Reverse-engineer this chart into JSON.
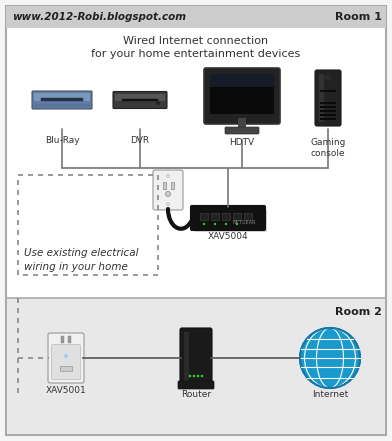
{
  "title_url": "www.2012-Robi.blogspot.com",
  "title_main1": "Wired Internet connection",
  "title_main2": "for your home entertainment devices",
  "room1_label": "Room 1",
  "room2_label": "Room 2",
  "xav5004_label": "XAV5004",
  "xav5001_label": "XAV5001",
  "router_label": "Router",
  "internet_label": "Internet",
  "bluray_label": "Blu-Ray",
  "dvr_label": "DVR",
  "hdtv_label": "HDTV",
  "console_label": "Gaming\nconsole",
  "use_text": "Use existing electrical\nwiring in your home",
  "bg_color": "#f5f5f5",
  "outer_border_color": "#aaaaaa",
  "white_bg": "#ffffff",
  "room2_bg": "#e8e8e8",
  "dashed_color": "#888888",
  "line_color": "#555555",
  "text_color": "#333333",
  "url_color": "#222222",
  "room_label_color": "#222222",
  "url_bar_color": "#cccccc",
  "divider_color": "#aaaaaa",
  "bluray_body": "#6677aa",
  "bluray_dark": "#445566",
  "dvr_body": "#3a3a3a",
  "dvr_slot": "#1a1a1a",
  "tv_body": "#111111",
  "tv_stand": "#444444",
  "console_body": "#222222",
  "device_wire_color": "#777777",
  "outlet_bg": "#f0f0f0",
  "xav_body": "#111111",
  "globe_fill": "#1a9acc",
  "globe_line": "#ffffff",
  "router_body": "#1a1a1a",
  "adapter_bg": "#e0e0e0",
  "cable_color": "#111111"
}
